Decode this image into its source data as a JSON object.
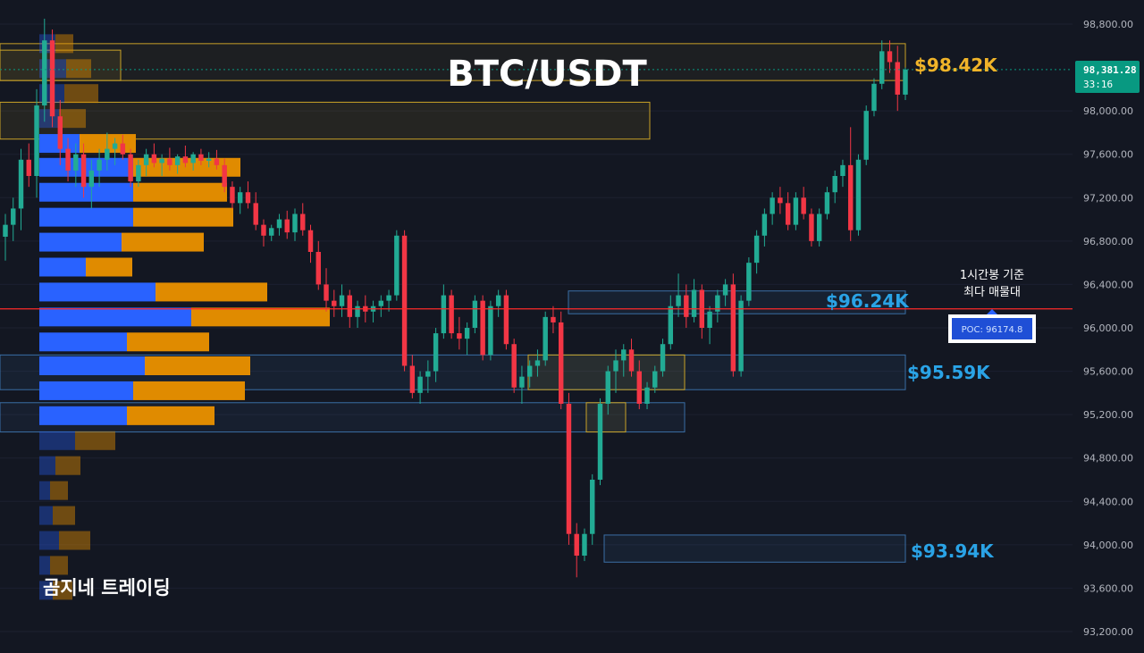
{
  "chart_data": {
    "type": "candlestick",
    "title": "BTC/USDT",
    "watermark": "곰지네 트레이딩",
    "ylim": [
      93050,
      98950
    ],
    "y_ticks": [
      "98,800.00",
      "98,000.00",
      "97,600.00",
      "97,200.00",
      "96,800.00",
      "96,400.00",
      "96,000.00",
      "95,600.00",
      "95,200.00",
      "94,800.00",
      "94,400.00",
      "94,000.00",
      "93,600.00",
      "93,200.00"
    ],
    "y_tick_values": [
      98800,
      98000,
      97600,
      97200,
      96800,
      96400,
      96000,
      95600,
      95200,
      94800,
      94400,
      94000,
      93600,
      93200
    ],
    "current_price": {
      "value": "98,381.28",
      "countdown": "33:16",
      "color": "#089981"
    },
    "levels": [
      {
        "label": "$98.42K",
        "price": 98420,
        "color": "#f0b429"
      },
      {
        "label": "$96.24K",
        "price": 96240,
        "color": "#2aa3e6"
      },
      {
        "label": "$95.59K",
        "price": 95590,
        "color": "#2aa3e6"
      },
      {
        "label": "$93.94K",
        "price": 93940,
        "color": "#2aa3e6"
      }
    ],
    "poc": {
      "value": 96174.8,
      "label": "POC: 96174.8",
      "note_line1": "1시간봉 기준",
      "note_line2": "최다 매물대",
      "color": "#ff2a2a"
    },
    "volume_profile": [
      {
        "price": 98620,
        "buy": 18,
        "sell": 20
      },
      {
        "price": 98390,
        "buy": 30,
        "sell": 28
      },
      {
        "price": 98160,
        "buy": 28,
        "sell": 38
      },
      {
        "price": 97930,
        "buy": 22,
        "sell": 30
      },
      {
        "price": 97700,
        "buy": 45,
        "sell": 63
      },
      {
        "price": 97480,
        "buy": 105,
        "sell": 120
      },
      {
        "price": 97250,
        "buy": 105,
        "sell": 105
      },
      {
        "price": 97020,
        "buy": 105,
        "sell": 112
      },
      {
        "price": 96790,
        "buy": 92,
        "sell": 92
      },
      {
        "price": 96560,
        "buy": 52,
        "sell": 52
      },
      {
        "price": 96330,
        "buy": 130,
        "sell": 125
      },
      {
        "price": 96100,
        "buy": 170,
        "sell": 155
      },
      {
        "price": 95870,
        "buy": 98,
        "sell": 92
      },
      {
        "price": 95650,
        "buy": 118,
        "sell": 118
      },
      {
        "price": 95420,
        "buy": 105,
        "sell": 125
      },
      {
        "price": 95190,
        "buy": 98,
        "sell": 98
      },
      {
        "price": 94960,
        "buy": 40,
        "sell": 45
      },
      {
        "price": 94730,
        "buy": 18,
        "sell": 28
      },
      {
        "price": 94500,
        "buy": 12,
        "sell": 20
      },
      {
        "price": 94270,
        "buy": 15,
        "sell": 25
      },
      {
        "price": 94040,
        "buy": 22,
        "sell": 35
      },
      {
        "price": 93810,
        "buy": 12,
        "sell": 20
      },
      {
        "price": 93580,
        "buy": 15,
        "sell": 22
      }
    ],
    "candles": [
      [
        96840,
        97050,
        96620,
        96950
      ],
      [
        96950,
        97200,
        96800,
        97100
      ],
      [
        97100,
        97650,
        96900,
        97550
      ],
      [
        97550,
        97700,
        97300,
        97400
      ],
      [
        97400,
        98200,
        97200,
        98050
      ],
      [
        98050,
        98850,
        97900,
        98650
      ],
      [
        98650,
        98750,
        97850,
        97950
      ],
      [
        97950,
        98100,
        97500,
        97650
      ],
      [
        97650,
        97750,
        97350,
        97450
      ],
      [
        97450,
        97700,
        97300,
        97600
      ],
      [
        97600,
        97700,
        97200,
        97300
      ],
      [
        97300,
        97550,
        97100,
        97450
      ],
      [
        97450,
        97650,
        97300,
        97550
      ],
      [
        97550,
        97800,
        97450,
        97650
      ],
      [
        97650,
        97750,
        97500,
        97700
      ],
      [
        97700,
        97780,
        97550,
        97600
      ],
      [
        97600,
        97650,
        97300,
        97350
      ],
      [
        97350,
        97550,
        97300,
        97500
      ],
      [
        97500,
        97650,
        97400,
        97600
      ],
      [
        97600,
        97700,
        97480,
        97520
      ],
      [
        97520,
        97600,
        97400,
        97560
      ],
      [
        97560,
        97660,
        97450,
        97500
      ],
      [
        97500,
        97600,
        97420,
        97580
      ],
      [
        97580,
        97680,
        97480,
        97520
      ],
      [
        97520,
        97620,
        97450,
        97600
      ],
      [
        97600,
        97650,
        97500,
        97540
      ],
      [
        97540,
        97620,
        97480,
        97560
      ],
      [
        97560,
        97640,
        97460,
        97500
      ],
      [
        97500,
        97560,
        97250,
        97300
      ],
      [
        97300,
        97350,
        97100,
        97150
      ],
      [
        97150,
        97300,
        97050,
        97250
      ],
      [
        97250,
        97350,
        97100,
        97150
      ],
      [
        97150,
        97250,
        96900,
        96950
      ],
      [
        96950,
        97000,
        96750,
        96850
      ],
      [
        96850,
        96950,
        96800,
        96920
      ],
      [
        96920,
        97050,
        96850,
        97000
      ],
      [
        97000,
        97080,
        96820,
        96880
      ],
      [
        96880,
        97100,
        96800,
        97050
      ],
      [
        97050,
        97150,
        96850,
        96900
      ],
      [
        96900,
        96950,
        96600,
        96700
      ],
      [
        96700,
        96800,
        96350,
        96400
      ],
      [
        96400,
        96550,
        96150,
        96250
      ],
      [
        96250,
        96350,
        96100,
        96200
      ],
      [
        96200,
        96400,
        96100,
        96300
      ],
      [
        96300,
        96350,
        96000,
        96100
      ],
      [
        96100,
        96250,
        96000,
        96200
      ],
      [
        96200,
        96300,
        96050,
        96150
      ],
      [
        96150,
        96250,
        96050,
        96200
      ],
      [
        96200,
        96300,
        96100,
        96250
      ],
      [
        96250,
        96350,
        96150,
        96300
      ],
      [
        96300,
        96900,
        96250,
        96850
      ],
      [
        96850,
        96900,
        95600,
        95650
      ],
      [
        95650,
        95750,
        95350,
        95400
      ],
      [
        95400,
        95600,
        95300,
        95550
      ],
      [
        95550,
        95700,
        95400,
        95600
      ],
      [
        95600,
        96000,
        95500,
        95950
      ],
      [
        95950,
        96400,
        95900,
        96300
      ],
      [
        96300,
        96350,
        95900,
        95950
      ],
      [
        95950,
        96100,
        95800,
        95900
      ],
      [
        95900,
        96050,
        95750,
        96000
      ],
      [
        96000,
        96300,
        95950,
        96250
      ],
      [
        96250,
        96300,
        95700,
        95750
      ],
      [
        95750,
        96250,
        95700,
        96200
      ],
      [
        96200,
        96350,
        96100,
        96300
      ],
      [
        96300,
        96350,
        95800,
        95850
      ],
      [
        95850,
        95900,
        95400,
        95450
      ],
      [
        95450,
        95650,
        95300,
        95550
      ],
      [
        95550,
        95700,
        95450,
        95650
      ],
      [
        95650,
        95800,
        95550,
        95700
      ],
      [
        95700,
        96150,
        95650,
        96100
      ],
      [
        96100,
        96200,
        95950,
        96050
      ],
      [
        96050,
        96150,
        95250,
        95300
      ],
      [
        95300,
        95400,
        94000,
        94100
      ],
      [
        94100,
        94200,
        93700,
        93900
      ],
      [
        93900,
        94150,
        93850,
        94100
      ],
      [
        94100,
        94650,
        94000,
        94600
      ],
      [
        94600,
        95350,
        94550,
        95300
      ],
      [
        95300,
        95650,
        95200,
        95600
      ],
      [
        95600,
        95800,
        95400,
        95700
      ],
      [
        95700,
        95850,
        95550,
        95800
      ],
      [
        95800,
        95900,
        95550,
        95600
      ],
      [
        95600,
        95700,
        95250,
        95300
      ],
      [
        95300,
        95500,
        95250,
        95450
      ],
      [
        95450,
        95650,
        95400,
        95600
      ],
      [
        95600,
        95900,
        95550,
        95850
      ],
      [
        95850,
        96300,
        95800,
        96200
      ],
      [
        96200,
        96500,
        96100,
        96300
      ],
      [
        96300,
        96400,
        96000,
        96100
      ],
      [
        96100,
        96450,
        96050,
        96350
      ],
      [
        96350,
        96400,
        95900,
        96000
      ],
      [
        96000,
        96200,
        95850,
        96150
      ],
      [
        96150,
        96350,
        96050,
        96300
      ],
      [
        96300,
        96450,
        96200,
        96400
      ],
      [
        96400,
        96500,
        95550,
        95600
      ],
      [
        95600,
        96300,
        95550,
        96250
      ],
      [
        96250,
        96650,
        96200,
        96600
      ],
      [
        96600,
        96900,
        96500,
        96850
      ],
      [
        96850,
        97100,
        96750,
        97050
      ],
      [
        97050,
        97250,
        96950,
        97200
      ],
      [
        97200,
        97300,
        97050,
        97150
      ],
      [
        97150,
        97250,
        96900,
        96950
      ],
      [
        96950,
        97250,
        96900,
        97200
      ],
      [
        97200,
        97300,
        97000,
        97050
      ],
      [
        97050,
        97100,
        96750,
        96800
      ],
      [
        96800,
        97100,
        96750,
        97050
      ],
      [
        97050,
        97300,
        97000,
        97250
      ],
      [
        97250,
        97450,
        97150,
        97400
      ],
      [
        97400,
        97550,
        97300,
        97500
      ],
      [
        97500,
        97850,
        96800,
        96900
      ],
      [
        96900,
        97600,
        96850,
        97550
      ],
      [
        97550,
        98050,
        97500,
        98000
      ],
      [
        98000,
        98300,
        97950,
        98250
      ],
      [
        98250,
        98650,
        98200,
        98550
      ],
      [
        98550,
        98650,
        98350,
        98450
      ],
      [
        98450,
        98600,
        98000,
        98150
      ],
      [
        98150,
        98400,
        98100,
        98381.28
      ]
    ]
  }
}
